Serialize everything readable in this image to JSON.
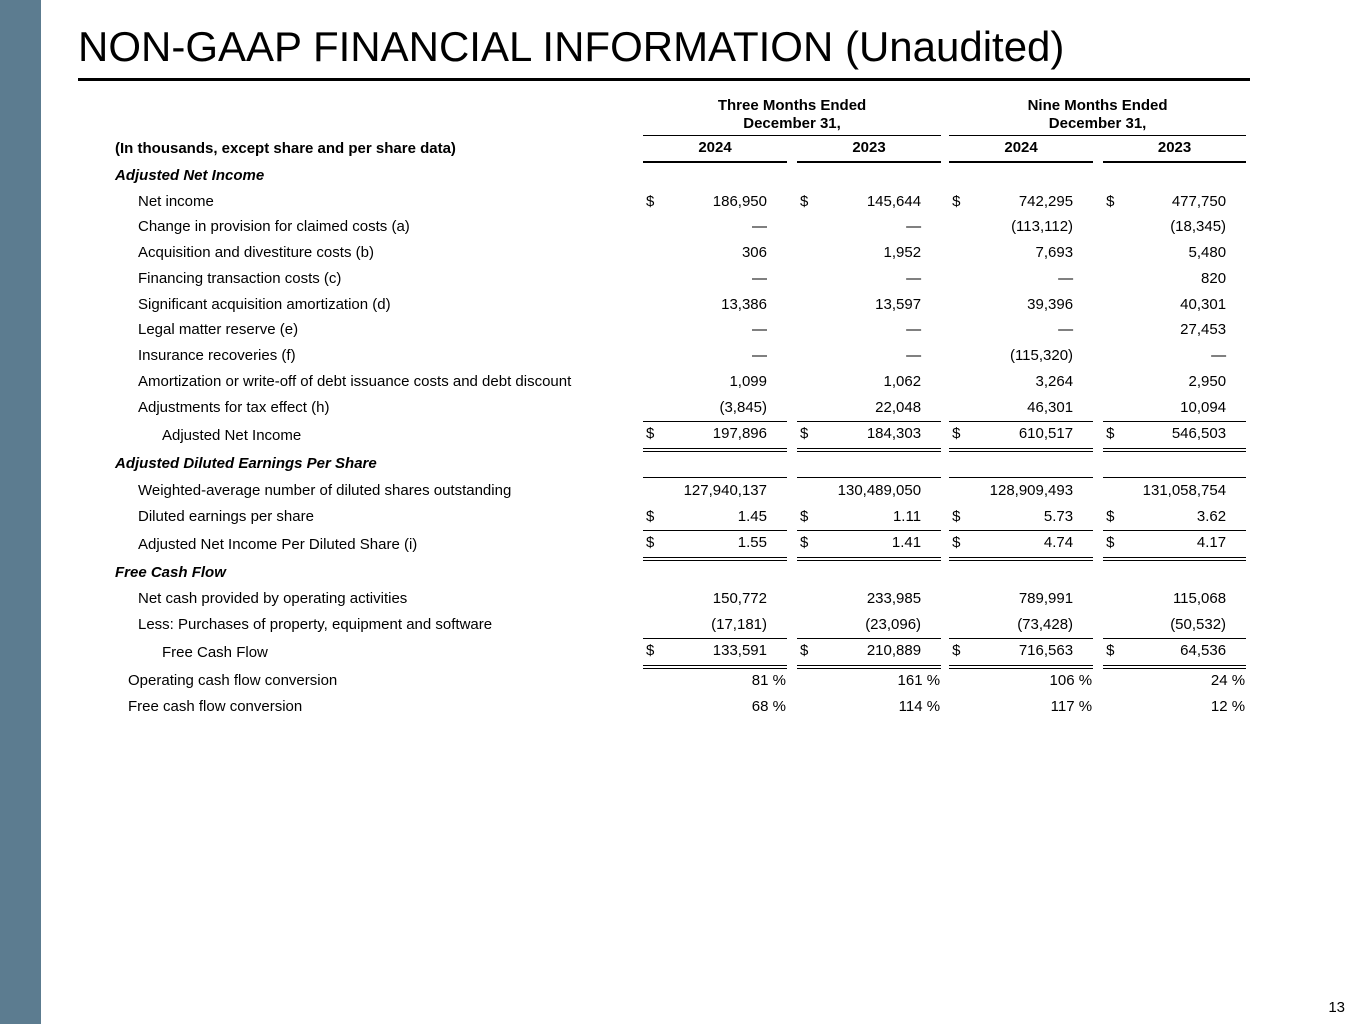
{
  "slide": {
    "title": "NON-GAAP FINANCIAL INFORMATION (Unaudited)",
    "page_number": "13",
    "sidebar_color": "#5c7c90"
  },
  "table": {
    "note": "(In thousands, except share and per share data)",
    "groups": [
      {
        "line1": "Three Months Ended",
        "line2": "December 31,",
        "years": [
          "2024",
          "2023"
        ]
      },
      {
        "line1": "Nine Months Ended",
        "line2": "December 31,",
        "years": [
          "2024",
          "2023"
        ]
      }
    ],
    "rows": [
      {
        "type": "section",
        "label": "Adjusted Net Income"
      },
      {
        "type": "item",
        "label": "Net income",
        "indent": 1,
        "dollar": true,
        "values": [
          "186,950",
          "145,644",
          "742,295",
          "477,750"
        ]
      },
      {
        "type": "item",
        "label": "Change in provision for claimed costs (a)",
        "indent": 1,
        "values": [
          "—",
          "—",
          "(113,112)",
          "(18,345)"
        ]
      },
      {
        "type": "item",
        "label": "Acquisition and divestiture costs (b)",
        "indent": 1,
        "values": [
          "306",
          "1,952",
          "7,693",
          "5,480"
        ]
      },
      {
        "type": "item",
        "label": "Financing transaction costs (c)",
        "indent": 1,
        "values": [
          "—",
          "—",
          "—",
          "820"
        ]
      },
      {
        "type": "item",
        "label": "Significant acquisition amortization (d)",
        "indent": 1,
        "values": [
          "13,386",
          "13,597",
          "39,396",
          "40,301"
        ]
      },
      {
        "type": "item",
        "label": "Legal matter reserve (e)",
        "indent": 1,
        "values": [
          "—",
          "—",
          "—",
          "27,453"
        ]
      },
      {
        "type": "item",
        "label": "Insurance recoveries (f)",
        "indent": 1,
        "values": [
          "—",
          "—",
          "(115,320)",
          "—"
        ]
      },
      {
        "type": "item",
        "label": "Amortization or write-off of debt issuance costs and debt discount",
        "indent": 1,
        "values": [
          "1,099",
          "1,062",
          "3,264",
          "2,950"
        ]
      },
      {
        "type": "item",
        "label": "Adjustments for tax effect (h)",
        "indent": 1,
        "values": [
          "(3,845)",
          "22,048",
          "46,301",
          "10,094"
        ]
      },
      {
        "type": "total",
        "label": "Adjusted Net Income",
        "indent": 2,
        "dollar": true,
        "border_top": true,
        "border_bottom": "double",
        "values": [
          "197,896",
          "184,303",
          "610,517",
          "546,503"
        ]
      },
      {
        "type": "section",
        "label": "Adjusted Diluted Earnings Per Share"
      },
      {
        "type": "item",
        "label": "Weighted-average number of diluted shares outstanding",
        "indent": 1,
        "border_top": true,
        "values": [
          "127,940,137",
          "130,489,050",
          "128,909,493",
          "131,058,754"
        ]
      },
      {
        "type": "item",
        "label": "Diluted earnings per share",
        "indent": 1,
        "dollar": true,
        "values": [
          "1.45",
          "1.11",
          "5.73",
          "3.62"
        ]
      },
      {
        "type": "item",
        "label": "Adjusted Net Income Per Diluted Share (i)",
        "indent": 1,
        "dollar": true,
        "border_top": true,
        "border_bottom": "double",
        "values": [
          "1.55",
          "1.41",
          "4.74",
          "4.17"
        ]
      },
      {
        "type": "section",
        "label": "Free Cash Flow"
      },
      {
        "type": "item",
        "label": "Net cash provided by operating activities",
        "indent": 1,
        "values": [
          "150,772",
          "233,985",
          "789,991",
          "115,068"
        ]
      },
      {
        "type": "item",
        "label": "Less: Purchases of property, equipment and software",
        "indent": 1,
        "values": [
          "(17,181)",
          "(23,096)",
          "(73,428)",
          "(50,532)"
        ]
      },
      {
        "type": "total",
        "label": "Free Cash Flow",
        "indent": 2,
        "dollar": true,
        "border_top": true,
        "border_bottom": "double",
        "values": [
          "133,591",
          "210,889",
          "716,563",
          "64,536"
        ]
      },
      {
        "type": "item",
        "label": "Operating cash flow conversion",
        "percent": true,
        "values": [
          "81 %",
          "161 %",
          "106 %",
          "24 %"
        ]
      },
      {
        "type": "item",
        "label": "Free cash flow conversion",
        "percent": true,
        "values": [
          "68 %",
          "114 %",
          "117 %",
          "12 %"
        ]
      }
    ]
  }
}
